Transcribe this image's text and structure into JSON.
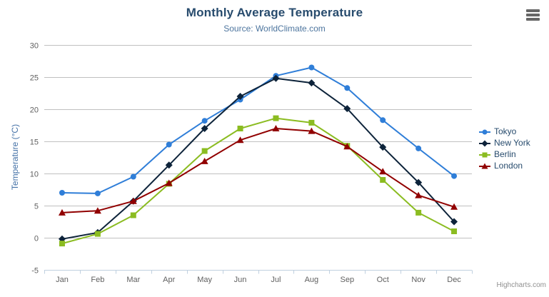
{
  "chart": {
    "title": "Monthly Average Temperature",
    "subtitle": "Source: WorldClimate.com",
    "credits": "Highcharts.com"
  },
  "icons": {
    "context_menu": "hamburger-icon"
  },
  "chart_data": {
    "type": "line",
    "title": "Monthly Average Temperature",
    "subtitle": "Source: WorldClimate.com",
    "categories": [
      "Jan",
      "Feb",
      "Mar",
      "Apr",
      "May",
      "Jun",
      "Jul",
      "Aug",
      "Sep",
      "Oct",
      "Nov",
      "Dec"
    ],
    "series": [
      {
        "name": "Tokyo",
        "color": "#2f7ed8",
        "marker": "circle",
        "values": [
          7.0,
          6.9,
          9.5,
          14.5,
          18.2,
          21.5,
          25.2,
          26.5,
          23.3,
          18.3,
          13.9,
          9.6
        ]
      },
      {
        "name": "New York",
        "color": "#0d233a",
        "marker": "diamond",
        "values": [
          -0.2,
          0.8,
          5.7,
          11.3,
          17.0,
          22.0,
          24.8,
          24.1,
          20.1,
          14.1,
          8.6,
          2.5
        ]
      },
      {
        "name": "Berlin",
        "color": "#8bbc21",
        "marker": "square",
        "values": [
          -0.9,
          0.6,
          3.5,
          8.4,
          13.5,
          17.0,
          18.6,
          17.9,
          14.3,
          9.0,
          3.9,
          1.0
        ]
      },
      {
        "name": "London",
        "color": "#910000",
        "marker": "triangle",
        "values": [
          3.9,
          4.2,
          5.7,
          8.5,
          11.9,
          15.2,
          17.0,
          16.6,
          14.2,
          10.3,
          6.6,
          4.8
        ]
      }
    ],
    "xlabel": "",
    "ylabel": "Temperature (°C)",
    "ylim": [
      -5,
      30
    ],
    "yticks": [
      -5,
      0,
      5,
      10,
      15,
      20,
      25,
      30
    ],
    "grid": true,
    "legend_position": "right"
  },
  "colors": {
    "title": "#274b6d",
    "subtitle": "#4d759e",
    "axis_title": "#4572a7",
    "tick_label": "#606060",
    "gridline": "#c0c0c0",
    "axis_line": "#c0d0e0",
    "legend_text": "#274b6d",
    "credits": "#909090",
    "background": "#ffffff"
  }
}
